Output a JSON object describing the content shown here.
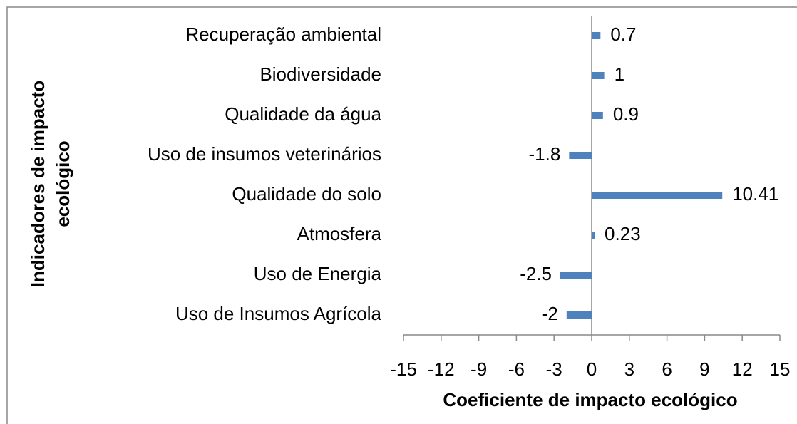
{
  "chart_data": {
    "type": "barh",
    "categories": [
      "Recuperação ambiental",
      "Biodiversidade",
      "Qualidade da água",
      "Uso de insumos veterinários",
      "Qualidade do solo",
      "Atmosfera",
      "Uso de Energia",
      "Uso de Insumos Agrícola"
    ],
    "values": [
      0.7,
      1,
      0.9,
      -1.8,
      10.41,
      0.23,
      -2.5,
      -2
    ],
    "color": "#4f81bd",
    "xlim": [
      -15,
      15
    ],
    "xticks": [
      -15,
      -12,
      -9,
      -6,
      -3,
      0,
      3,
      6,
      9,
      12,
      15
    ],
    "xlabel": "Coeficiente de impacto ecológico",
    "ylabel": [
      "Indicadores de impacto",
      "ecológico"
    ]
  }
}
